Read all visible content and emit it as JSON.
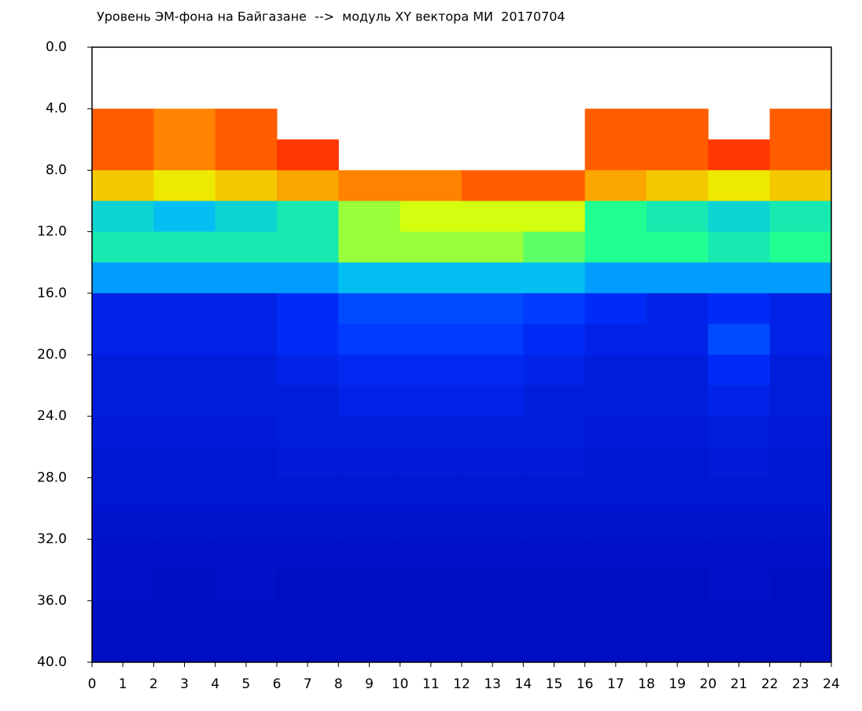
{
  "chart_data": {
    "type": "heatmap",
    "title": "Уровень ЭМ-фона на Байгазане  -->  модуль XY вектора МИ  20170704",
    "xlim": [
      0,
      24
    ],
    "ylim": [
      0,
      40
    ],
    "y_inverted": true,
    "xticks": [
      0,
      1,
      2,
      3,
      4,
      5,
      6,
      7,
      8,
      9,
      10,
      11,
      12,
      13,
      14,
      15,
      16,
      17,
      18,
      19,
      20,
      21,
      22,
      23,
      24
    ],
    "yticks": [
      {
        "value": 0,
        "label": "0.0"
      },
      {
        "value": 4,
        "label": "4.0"
      },
      {
        "value": 8,
        "label": "8.0"
      },
      {
        "value": 12,
        "label": "12.0"
      },
      {
        "value": 16,
        "label": "16.0"
      },
      {
        "value": 20,
        "label": "20.0"
      },
      {
        "value": 24,
        "label": "24.0"
      },
      {
        "value": 28,
        "label": "28.0"
      },
      {
        "value": 32,
        "label": "32.0"
      },
      {
        "value": 36,
        "label": "36.0"
      },
      {
        "value": 40,
        "label": "40.0"
      }
    ],
    "colormap": [
      "#0000a8",
      "#0030ff",
      "#00b8ff",
      "#20ff90",
      "#e8ff00",
      "#ff9000",
      "#ff1000"
    ],
    "values": [
      [
        null,
        null,
        null,
        null,
        null,
        null,
        null,
        null,
        null,
        null,
        null,
        null
      ],
      [
        null,
        null,
        null,
        null,
        null,
        null,
        null,
        null,
        null,
        null,
        null,
        null
      ],
      [
        0.9,
        0.85,
        0.9,
        null,
        null,
        null,
        null,
        null,
        0.9,
        0.9,
        null,
        0.9
      ],
      [
        0.9,
        0.85,
        0.9,
        0.95,
        null,
        null,
        null,
        null,
        0.9,
        0.9,
        0.95,
        0.9
      ],
      [
        0.75,
        0.7,
        0.75,
        0.8,
        0.85,
        0.85,
        0.9,
        0.9,
        0.8,
        0.75,
        0.7,
        0.75
      ],
      [
        0.4,
        0.35,
        0.4,
        0.45,
        0.6,
        0.65,
        0.65,
        0.65,
        0.5,
        0.45,
        0.4,
        0.45
      ],
      [
        0.45,
        0.45,
        0.45,
        0.45,
        0.6,
        0.6,
        0.6,
        0.55,
        0.5,
        0.5,
        0.45,
        0.5
      ],
      [
        0.3,
        0.3,
        0.3,
        0.3,
        0.35,
        0.35,
        0.35,
        0.35,
        0.3,
        0.3,
        0.3,
        0.3
      ],
      [
        0.12,
        0.12,
        0.12,
        0.15,
        0.2,
        0.2,
        0.2,
        0.18,
        0.15,
        0.12,
        0.15,
        0.12
      ],
      [
        0.12,
        0.12,
        0.12,
        0.15,
        0.18,
        0.18,
        0.18,
        0.15,
        0.12,
        0.12,
        0.2,
        0.12
      ],
      [
        0.1,
        0.1,
        0.1,
        0.12,
        0.14,
        0.14,
        0.14,
        0.12,
        0.1,
        0.1,
        0.15,
        0.1
      ],
      [
        0.1,
        0.1,
        0.1,
        0.1,
        0.12,
        0.12,
        0.12,
        0.1,
        0.1,
        0.1,
        0.12,
        0.1
      ],
      [
        0.09,
        0.09,
        0.09,
        0.1,
        0.1,
        0.1,
        0.1,
        0.1,
        0.09,
        0.09,
        0.1,
        0.09
      ],
      [
        0.08,
        0.08,
        0.08,
        0.09,
        0.09,
        0.09,
        0.09,
        0.09,
        0.08,
        0.08,
        0.09,
        0.08
      ],
      [
        0.08,
        0.08,
        0.08,
        0.08,
        0.08,
        0.08,
        0.08,
        0.08,
        0.08,
        0.08,
        0.08,
        0.08
      ],
      [
        0.07,
        0.07,
        0.07,
        0.07,
        0.07,
        0.07,
        0.07,
        0.07,
        0.07,
        0.07,
        0.07,
        0.07
      ],
      [
        0.06,
        0.06,
        0.06,
        0.06,
        0.06,
        0.06,
        0.06,
        0.06,
        0.06,
        0.06,
        0.06,
        0.06
      ],
      [
        0.06,
        0.05,
        0.06,
        0.05,
        0.05,
        0.05,
        0.05,
        0.05,
        0.05,
        0.05,
        0.06,
        0.05
      ],
      [
        0.05,
        0.05,
        0.05,
        0.05,
        0.05,
        0.05,
        0.05,
        0.05,
        0.05,
        0.05,
        0.05,
        0.05
      ],
      [
        0.05,
        0.05,
        0.05,
        0.05,
        0.05,
        0.05,
        0.05,
        0.05,
        0.05,
        0.05,
        0.05,
        0.05
      ]
    ]
  }
}
